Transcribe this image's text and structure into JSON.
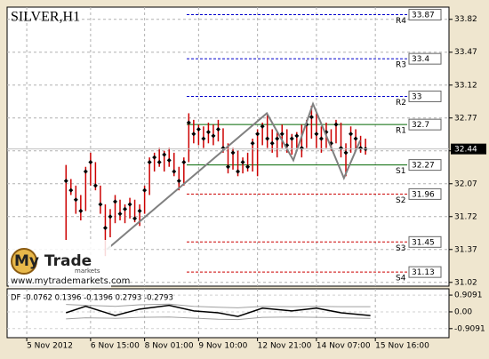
{
  "chart_data": {
    "type": "hlc",
    "title": "SILVER,H1",
    "ylim": [
      30.98,
      33.95
    ],
    "yticks": [
      33.82,
      33.47,
      33.12,
      32.77,
      32.42,
      32.07,
      31.72,
      31.37,
      31.02
    ],
    "xlim": [
      0,
      90
    ],
    "xticks": [
      {
        "value": 4,
        "label": "5 Nov 2012"
      },
      {
        "value": 17,
        "label": "6 Nov 15:00"
      },
      {
        "value": 28,
        "label": "8 Nov 01:00"
      },
      {
        "value": 39,
        "label": "9 Nov 10:00"
      },
      {
        "value": 51,
        "label": "12 Nov 21:00"
      },
      {
        "value": 63,
        "label": "14 Nov 07:00"
      },
      {
        "value": 75,
        "label": "15 Nov 16:00"
      }
    ],
    "grid": true,
    "bar_color": "#cc0000",
    "close_color": "#000000",
    "x": [
      12,
      13,
      14,
      15,
      16,
      17,
      18,
      19,
      20,
      21,
      22,
      23,
      24,
      25,
      26,
      27,
      28,
      29,
      30,
      31,
      32,
      33,
      34,
      35,
      36,
      37,
      38,
      39,
      40,
      41,
      42,
      43,
      44,
      45,
      46,
      47,
      48,
      49,
      50,
      51,
      52,
      53,
      54,
      55,
      56,
      57,
      58,
      59,
      60,
      61,
      62,
      63,
      64,
      65,
      66,
      67,
      68,
      69,
      70,
      71,
      72,
      73
    ],
    "high": [
      32.27,
      32.12,
      32.05,
      31.95,
      32.25,
      32.4,
      32.3,
      32.05,
      31.85,
      31.8,
      31.95,
      31.9,
      31.85,
      31.92,
      31.9,
      31.85,
      32.05,
      32.35,
      32.4,
      32.45,
      32.42,
      32.45,
      32.4,
      32.25,
      32.35,
      32.82,
      32.75,
      32.7,
      32.68,
      32.72,
      32.7,
      32.75,
      32.66,
      32.5,
      32.45,
      32.42,
      32.35,
      32.4,
      32.55,
      32.65,
      32.72,
      32.8,
      32.65,
      32.62,
      32.7,
      32.65,
      32.6,
      32.62,
      32.7,
      32.75,
      32.9,
      32.82,
      32.68,
      32.72,
      32.65,
      32.75,
      32.72,
      32.5,
      32.68,
      32.65,
      32.58,
      32.55
    ],
    "low": [
      31.47,
      31.95,
      31.75,
      31.68,
      31.78,
      32.05,
      32.0,
      31.75,
      31.3,
      31.5,
      31.65,
      31.68,
      31.65,
      31.7,
      31.66,
      31.62,
      31.75,
      31.95,
      32.2,
      32.25,
      32.2,
      32.25,
      32.15,
      32.0,
      32.05,
      32.3,
      32.5,
      32.48,
      32.45,
      32.5,
      32.48,
      32.52,
      32.4,
      32.18,
      32.22,
      32.15,
      32.18,
      32.2,
      32.2,
      32.15,
      32.48,
      32.45,
      32.4,
      32.35,
      32.45,
      32.4,
      32.38,
      32.45,
      32.35,
      32.45,
      32.55,
      32.45,
      32.4,
      32.45,
      32.42,
      32.5,
      32.35,
      32.15,
      32.4,
      32.42,
      32.4,
      32.38
    ],
    "close": [
      32.1,
      32.0,
      31.9,
      31.78,
      32.2,
      32.3,
      32.05,
      31.85,
      31.6,
      31.72,
      31.88,
      31.75,
      31.8,
      31.85,
      31.7,
      31.78,
      32.0,
      32.3,
      32.35,
      32.3,
      32.38,
      32.32,
      32.2,
      32.1,
      32.3,
      32.72,
      32.6,
      32.65,
      32.55,
      32.62,
      32.58,
      32.65,
      32.45,
      32.25,
      32.4,
      32.2,
      32.3,
      32.25,
      32.5,
      32.6,
      32.68,
      32.55,
      32.5,
      32.55,
      32.6,
      32.48,
      32.55,
      32.58,
      32.45,
      32.7,
      32.78,
      32.6,
      32.55,
      32.62,
      32.5,
      32.7,
      32.45,
      32.4,
      32.6,
      32.55,
      32.45,
      32.44
    ],
    "zigzag": {
      "color": "#808080",
      "x": [
        20.3,
        52.9,
        58.3,
        62.3,
        68.6,
        71.9
      ],
      "values": [
        31.37,
        32.82,
        32.32,
        32.92,
        32.13,
        32.53
      ]
    },
    "levels": [
      {
        "name": "R4",
        "value": 33.87,
        "color": "#0000cc"
      },
      {
        "name": "R3",
        "value": 33.4,
        "color": "#0000cc"
      },
      {
        "name": "R2",
        "value": 33.0,
        "color": "#0000cc"
      },
      {
        "name": "R1",
        "value": 32.7,
        "color": "#006600"
      },
      {
        "name": "S1",
        "value": 32.27,
        "color": "#006600"
      },
      {
        "name": "S2",
        "value": 31.96,
        "color": "#cc0000"
      },
      {
        "name": "S3",
        "value": 31.45,
        "color": "#cc0000"
      },
      {
        "name": "S4",
        "value": 31.13,
        "color": "#cc0000"
      }
    ],
    "current_price": 32.44,
    "logo_text": "My Trade",
    "logo_sub": "markets",
    "url": "www.mytrademarkets.com",
    "indicator": {
      "label": "DF -0.0762 0.1396 -0.1396 0.2793 -0.2793",
      "ylim": [
        -1.4,
        1.25
      ],
      "yticks": [
        0.9091,
        {
          "value": 0,
          "label": "0.00"
        },
        -0.9091
      ],
      "x": [
        12,
        16,
        22,
        27,
        33,
        38,
        43,
        47,
        52,
        58,
        63,
        68,
        74
      ],
      "series": [
        {
          "color": "#a0a0a0",
          "values": [
            0.4,
            0.35,
            0.3,
            0.38,
            0.42,
            0.3,
            0.25,
            0.22,
            0.3,
            0.28,
            0.3,
            0.28,
            0.28
          ]
        },
        {
          "color": "#a0a0a0",
          "values": [
            -0.38,
            -0.32,
            -0.35,
            -0.3,
            -0.28,
            -0.34,
            -0.4,
            -0.42,
            -0.3,
            -0.28,
            -0.3,
            -0.32,
            -0.35
          ]
        },
        {
          "color": "#000000",
          "values": [
            -0.05,
            0.3,
            -0.2,
            0.15,
            0.35,
            0.05,
            -0.05,
            -0.25,
            0.2,
            0.05,
            0.2,
            -0.05,
            -0.2
          ]
        }
      ]
    }
  }
}
